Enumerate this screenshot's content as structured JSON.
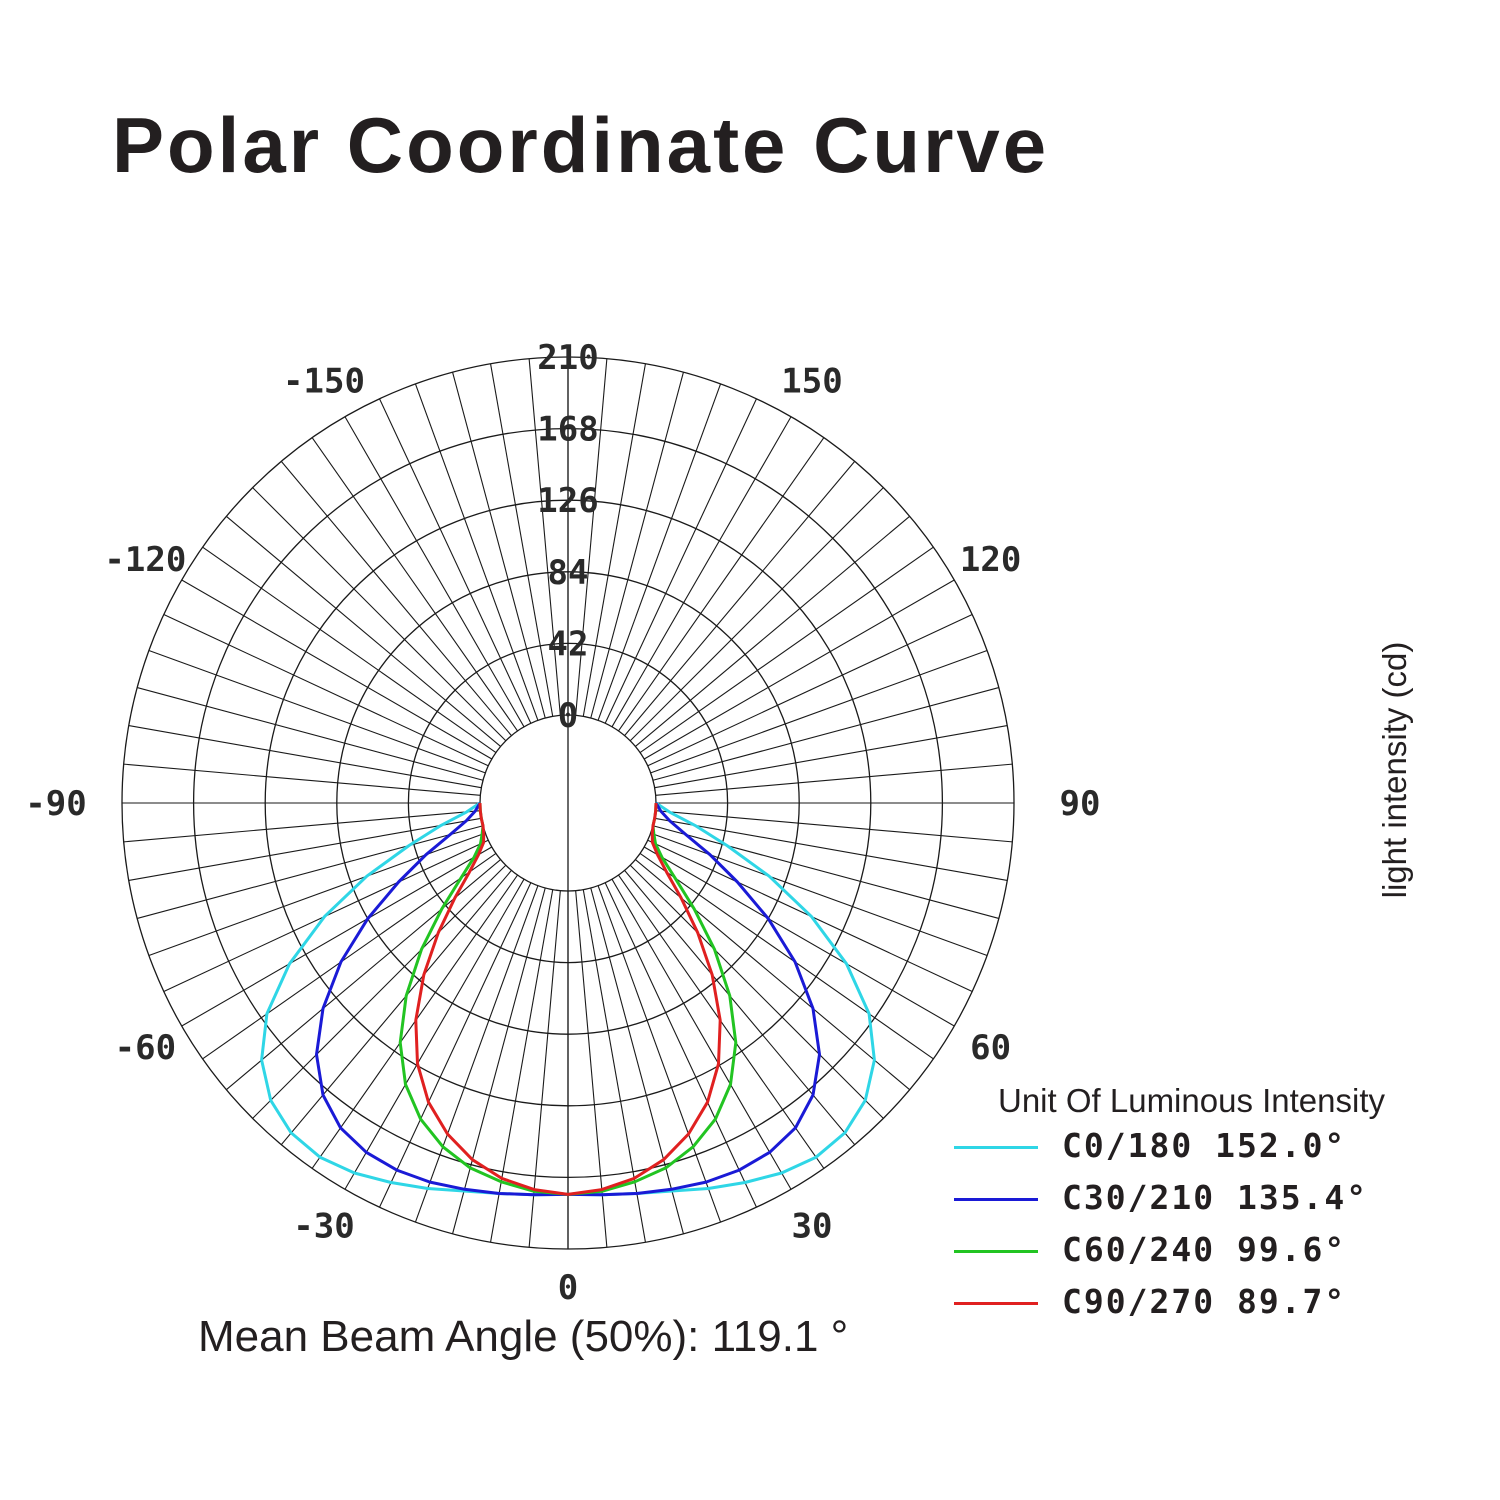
{
  "title": "Polar Coordinate Curve",
  "y_axis_label": "light intensity (cd)",
  "unit_label": "Unit Of Luminous Intensity",
  "mean_beam": "Mean Beam Angle (50%): 119.1 °",
  "legend": [
    {
      "name": "C0/180",
      "angle": "152.0°",
      "color": "#2fd6e6"
    },
    {
      "name": "C30/210",
      "angle": "135.4°",
      "color": "#1a1ad6"
    },
    {
      "name": "C60/240",
      "angle": "99.6°",
      "color": "#22c422"
    },
    {
      "name": "C90/270",
      "angle": "89.7°",
      "color": "#e02020"
    }
  ],
  "chart_data": {
    "type": "polar",
    "title": "Polar Coordinate Curve",
    "radial_label": "light intensity (cd)",
    "radial_range": [
      0,
      210
    ],
    "radial_ticks": [
      "0",
      "42",
      "84",
      "126",
      "168",
      "210"
    ],
    "angle_ticks": [
      "0",
      "30",
      "60",
      "90",
      "120",
      "150",
      "-150",
      "-120",
      "-90",
      "-60",
      "-30"
    ],
    "angle_tick_values": [
      0,
      30,
      60,
      90,
      120,
      150,
      -150,
      -120,
      -90,
      -60,
      -30
    ],
    "grid": true,
    "angle_unit": "degrees",
    "series": [
      {
        "name": "C0/180 152.0°",
        "color": "#2fd6e6",
        "angles": [
          0,
          5,
          10,
          15,
          20,
          25,
          30,
          35,
          40,
          45,
          50,
          55,
          60,
          65,
          70,
          75,
          80,
          85,
          90
        ],
        "intensity": [
          178,
          179,
          181,
          184,
          189,
          194,
          199,
          202,
          201,
          195,
          183,
          164,
          137,
          106,
          74,
          45,
          24,
          8,
          0
        ]
      },
      {
        "name": "C30/210 135.4°",
        "color": "#1a1ad6",
        "angles": [
          0,
          5,
          10,
          15,
          20,
          25,
          30,
          35,
          40,
          45,
          50,
          55,
          60,
          65,
          70,
          75,
          80,
          85,
          90
        ],
        "intensity": [
          178,
          179,
          181,
          183,
          185,
          186,
          185,
          181,
          172,
          157,
          136,
          111,
          84,
          58,
          37,
          20,
          9,
          3,
          0
        ]
      },
      {
        "name": "C60/240 99.6°",
        "color": "#22c422",
        "angles": [
          0,
          5,
          10,
          15,
          20,
          25,
          30,
          35,
          40,
          45,
          50,
          55,
          60,
          65,
          70,
          75,
          80,
          85,
          90
        ],
        "intensity": [
          178,
          177,
          174,
          170,
          163,
          153,
          139,
          120,
          96,
          70,
          45,
          25,
          12,
          5,
          2,
          0,
          0,
          0,
          0
        ]
      },
      {
        "name": "C90/270 89.7°",
        "color": "#e02020",
        "angles": [
          0,
          5,
          10,
          15,
          20,
          25,
          30,
          35,
          40,
          45,
          50,
          55,
          60,
          65,
          70,
          75,
          80,
          85,
          90
        ],
        "intensity": [
          178,
          176,
          172,
          165,
          155,
          142,
          125,
          104,
          80,
          56,
          35,
          19,
          9,
          3,
          1,
          0,
          0,
          0,
          0
        ]
      }
    ]
  }
}
